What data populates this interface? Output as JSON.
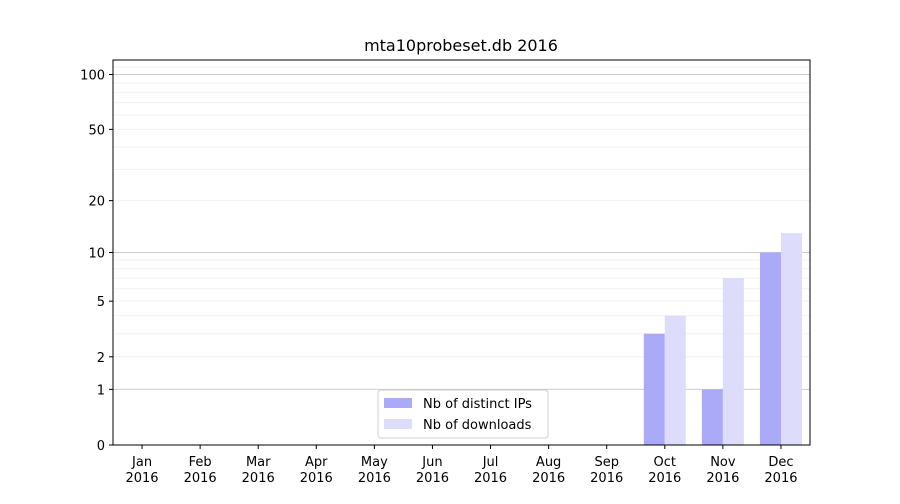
{
  "chart_data": {
    "type": "bar",
    "title": "mta10probeset.db 2016",
    "xlabel": "",
    "ylabel": "",
    "categories": [
      [
        "Jan",
        "2016"
      ],
      [
        "Feb",
        "2016"
      ],
      [
        "Mar",
        "2016"
      ],
      [
        "Apr",
        "2016"
      ],
      [
        "May",
        "2016"
      ],
      [
        "Jun",
        "2016"
      ],
      [
        "Jul",
        "2016"
      ],
      [
        "Aug",
        "2016"
      ],
      [
        "Sep",
        "2016"
      ],
      [
        "Oct",
        "2016"
      ],
      [
        "Nov",
        "2016"
      ],
      [
        "Dec",
        "2016"
      ]
    ],
    "series": [
      {
        "name": "Nb of distinct IPs",
        "color": "#aaaaf8",
        "values": [
          0,
          0,
          0,
          0,
          0,
          0,
          0,
          0,
          0,
          3,
          1,
          10
        ]
      },
      {
        "name": "Nb of downloads",
        "color": "#ddddfb",
        "values": [
          0,
          0,
          0,
          0,
          0,
          0,
          0,
          0,
          0,
          4,
          7,
          13
        ]
      }
    ],
    "y_scale": "log(1+y)",
    "ylim": [
      0,
      120
    ],
    "yticks": [
      0,
      1,
      2,
      5,
      10,
      20,
      50,
      100
    ],
    "legend_position": "lower-center",
    "grid": true
  }
}
